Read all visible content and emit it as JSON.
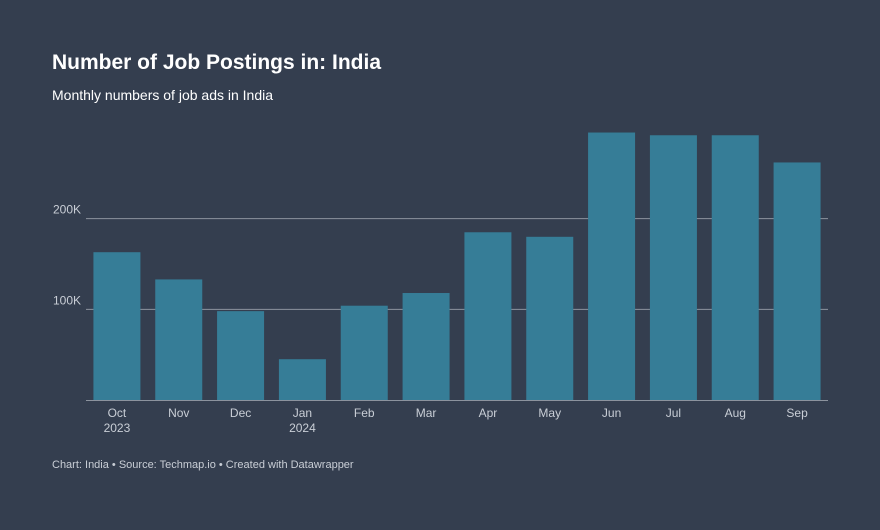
{
  "header": {
    "title": "Number of Job Postings in: India",
    "subtitle": "Monthly numbers of job ads in India"
  },
  "footer": {
    "credit": "Chart: India • Source: Techmap.io • Created with Datawrapper"
  },
  "colors": {
    "background": "#343e4f",
    "bar": "#367d97",
    "gridline": "#8c939e",
    "text": "#ffffff",
    "muted_text": "#c9ced6"
  },
  "chart_data": {
    "type": "bar",
    "title": "Number of Job Postings in: India",
    "subtitle": "Monthly numbers of job ads in India",
    "xlabel": "",
    "ylabel": "",
    "categories": [
      "Oct",
      "Nov",
      "Dec",
      "Jan",
      "Feb",
      "Mar",
      "Apr",
      "May",
      "Jun",
      "Jul",
      "Aug",
      "Sep"
    ],
    "category_sublabels": [
      "2023",
      "",
      "",
      "2024",
      "",
      "",
      "",
      "",
      "",
      "",
      "",
      ""
    ],
    "values": [
      163000,
      133000,
      98000,
      45000,
      104000,
      118000,
      185000,
      180000,
      295000,
      292000,
      292000,
      262000
    ],
    "ylim": [
      0,
      300000
    ],
    "yticks": [
      100000,
      200000
    ],
    "ytick_labels": [
      "100K",
      "200K"
    ],
    "grid": true,
    "legend": "none"
  }
}
